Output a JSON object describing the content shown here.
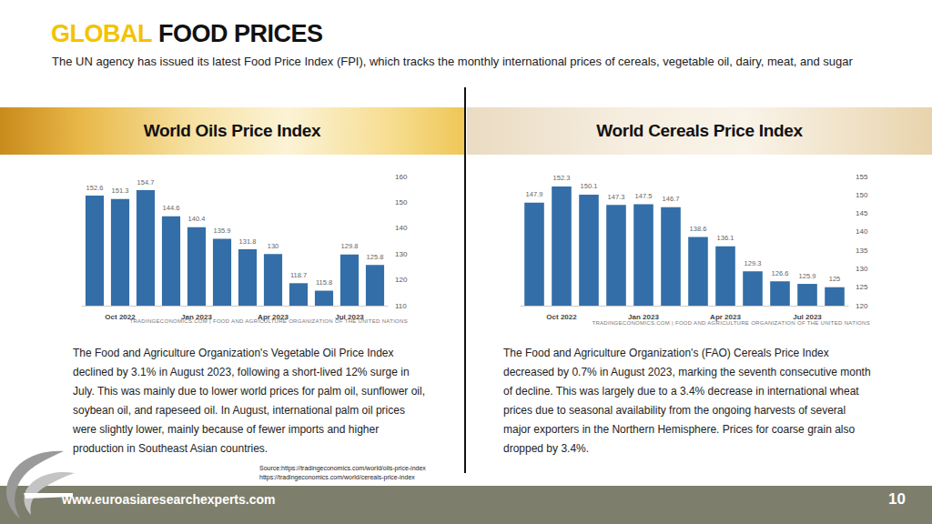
{
  "header": {
    "title_highlight": "GLOBAL",
    "title_rest": "FOOD PRICES",
    "subtitle": "The UN agency has issued its latest Food Price Index (FPI), which tracks the monthly international prices of cereals, vegetable oil, dairy, meat, and sugar"
  },
  "chart_data": [
    {
      "type": "bar",
      "title": "World Oils Price Index",
      "categories": [
        null,
        "Oct 2022",
        null,
        null,
        "Jan 2023",
        null,
        null,
        "Apr 2023",
        null,
        null,
        "Jul 2023",
        null
      ],
      "values": [
        152.6,
        151.3,
        154.7,
        144.6,
        140.4,
        135.9,
        131.8,
        130,
        118.7,
        115.8,
        129.8,
        125.8
      ],
      "color": "#336ea8",
      "ylim": [
        110,
        160
      ],
      "yticks": [
        110,
        120,
        130,
        140,
        150,
        160
      ],
      "grid": false,
      "data_labels": true,
      "annotations": [
        "TRADINGECONOMICS.COM | FOOD AND AGRICULTURE ORGANIZATION OF THE UNITED NATIONS"
      ]
    },
    {
      "type": "bar",
      "title": "World Cereals Price Index",
      "categories": [
        null,
        "Oct 2022",
        null,
        null,
        "Jan 2023",
        null,
        null,
        "Apr 2023",
        null,
        null,
        "Jul 2023",
        null
      ],
      "values": [
        147.9,
        152.3,
        150.1,
        147.3,
        147.5,
        146.7,
        138.6,
        136.1,
        129.3,
        126.6,
        125.9,
        125
      ],
      "color": "#336ea8",
      "ylim": [
        120,
        155
      ],
      "yticks": [
        120,
        125,
        130,
        135,
        140,
        145,
        150,
        155
      ],
      "grid": false,
      "data_labels": true,
      "annotations": [
        "TRADINGECONOMICS.COM | FOOD AND AGRICULTURE ORGANIZATION OF THE UNITED NATIONS"
      ]
    }
  ],
  "panels": [
    {
      "text": "The Food and Agriculture Organization's Vegetable Oil Price Index declined by 3.1% in August 2023, following a short-lived 12% surge in July. This was mainly due to lower world prices for palm oil, sunflower oil, soybean oil, and rapeseed oil. In August, international palm oil prices were slightly lower, mainly because of fewer imports and higher production in Southeast Asian countries.",
      "source": [
        "Source:https://tradingeconomics.com/world/oils-price-index",
        "https://tradingeconomics.com/world/cereals-price-index"
      ]
    },
    {
      "text": "The Food and Agriculture Organization's (FAO) Cereals Price Index decreased by 0.7% in August 2023, marking the seventh consecutive month of decline. This was largely due to a 3.4% decrease in international wheat prices due to seasonal availability from the ongoing harvests of several major exporters in the Northern Hemisphere. Prices for coarse grain also dropped by 3.4%.",
      "source": []
    }
  ],
  "footer": {
    "website": "www.euroasiaresearchexperts.com",
    "page": "10"
  }
}
